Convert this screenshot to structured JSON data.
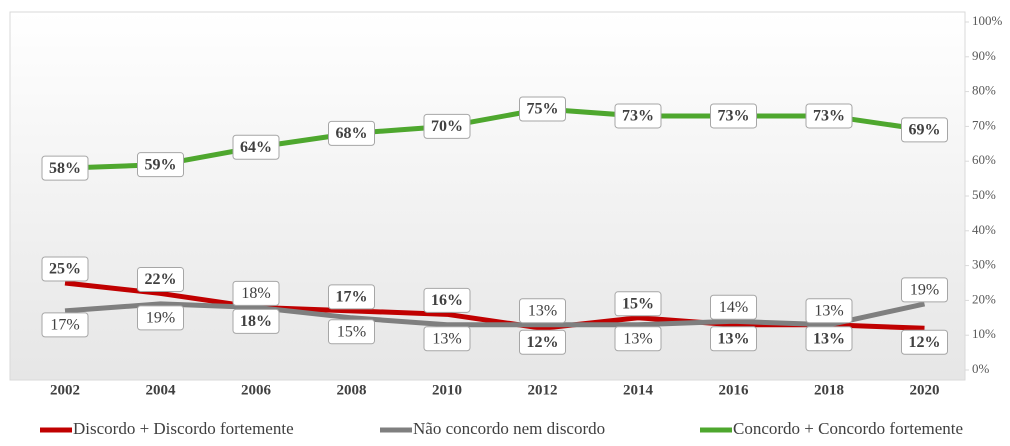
{
  "chart_data": {
    "type": "line",
    "categories": [
      "2002",
      "2004",
      "2006",
      "2008",
      "2010",
      "2012",
      "2014",
      "2016",
      "2018",
      "2020"
    ],
    "series": [
      {
        "name": "Discordo + Discordo fortemente",
        "color": "#c00000",
        "values": [
          25,
          22,
          18,
          17,
          16,
          12,
          15,
          13,
          13,
          12
        ],
        "value_labels": [
          "25%",
          "22%",
          "18%",
          "17%",
          "16%",
          "12%",
          "15%",
          "13%",
          "13%",
          "12%"
        ]
      },
      {
        "name": "Não concordo nem discordo",
        "color": "#7f7f7f",
        "values": [
          17,
          19,
          18,
          15,
          13,
          13,
          13,
          14,
          13,
          19
        ],
        "value_labels": [
          "17%",
          "19%",
          "18%",
          "15%",
          "13%",
          "13%",
          "13%",
          "14%",
          "13%",
          "19%"
        ]
      },
      {
        "name": "Concordo + Concordo fortemente",
        "color": "#4ea72e",
        "values": [
          58,
          59,
          64,
          68,
          70,
          75,
          73,
          73,
          73,
          69
        ],
        "value_labels": [
          "58%",
          "59%",
          "64%",
          "68%",
          "70%",
          "75%",
          "73%",
          "73%",
          "73%",
          "69%"
        ]
      }
    ],
    "ylim": [
      0,
      100
    ],
    "yticks": [
      {
        "value": 0,
        "label": "0%"
      },
      {
        "value": 10,
        "label": "10%"
      },
      {
        "value": 20,
        "label": "20%"
      },
      {
        "value": 30,
        "label": "30%"
      },
      {
        "value": 40,
        "label": "40%"
      },
      {
        "value": 50,
        "label": "50%"
      },
      {
        "value": 60,
        "label": "60%"
      },
      {
        "value": 70,
        "label": "70%"
      },
      {
        "value": 80,
        "label": "80%"
      },
      {
        "value": 90,
        "label": "90%"
      },
      {
        "value": 100,
        "label": "100%"
      }
    ]
  }
}
